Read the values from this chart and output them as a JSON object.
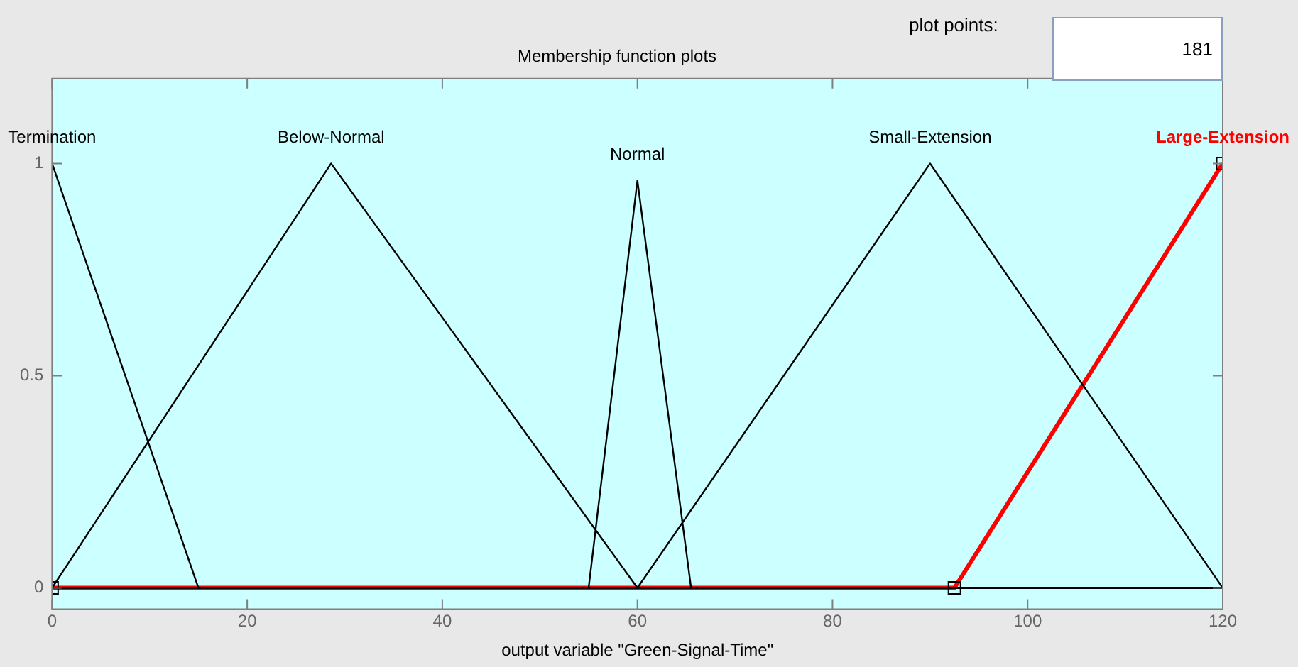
{
  "chart_data": {
    "type": "line",
    "title": "Membership function plots",
    "xlabel": "output variable \"Green-Signal-Time\"",
    "annotations": [
      "plot points:",
      "181"
    ],
    "xlim": [
      0,
      120
    ],
    "xticks": [
      0,
      20,
      40,
      60,
      80,
      100,
      120
    ],
    "ylim": [
      -0.05,
      1.2
    ],
    "yticks": [
      0,
      0.5,
      1
    ],
    "grid": false,
    "legend": false,
    "marker": "none",
    "line_style": "solid",
    "series": [
      {
        "name": "Termination",
        "color": "#000000",
        "x": [
          0,
          15,
          120
        ],
        "values": [
          1,
          0,
          0
        ]
      },
      {
        "name": "Below-Normal",
        "color": "#000000",
        "x": [
          0,
          28.6,
          60,
          120
        ],
        "values": [
          0,
          1,
          0,
          0
        ]
      },
      {
        "name": "Normal",
        "color": "#000000",
        "x": [
          0,
          55,
          60,
          65.5,
          120
        ],
        "values": [
          0,
          0,
          0.96,
          0,
          0
        ]
      },
      {
        "name": "Small-Extension",
        "color": "#000000",
        "x": [
          0,
          60,
          90,
          120
        ],
        "values": [
          0,
          0,
          1,
          0
        ]
      },
      {
        "name": "Large-Extension",
        "color": "#ff0000",
        "marker": "square",
        "x": [
          0,
          92.5,
          120
        ],
        "values": [
          0,
          0,
          1
        ]
      }
    ]
  }
}
